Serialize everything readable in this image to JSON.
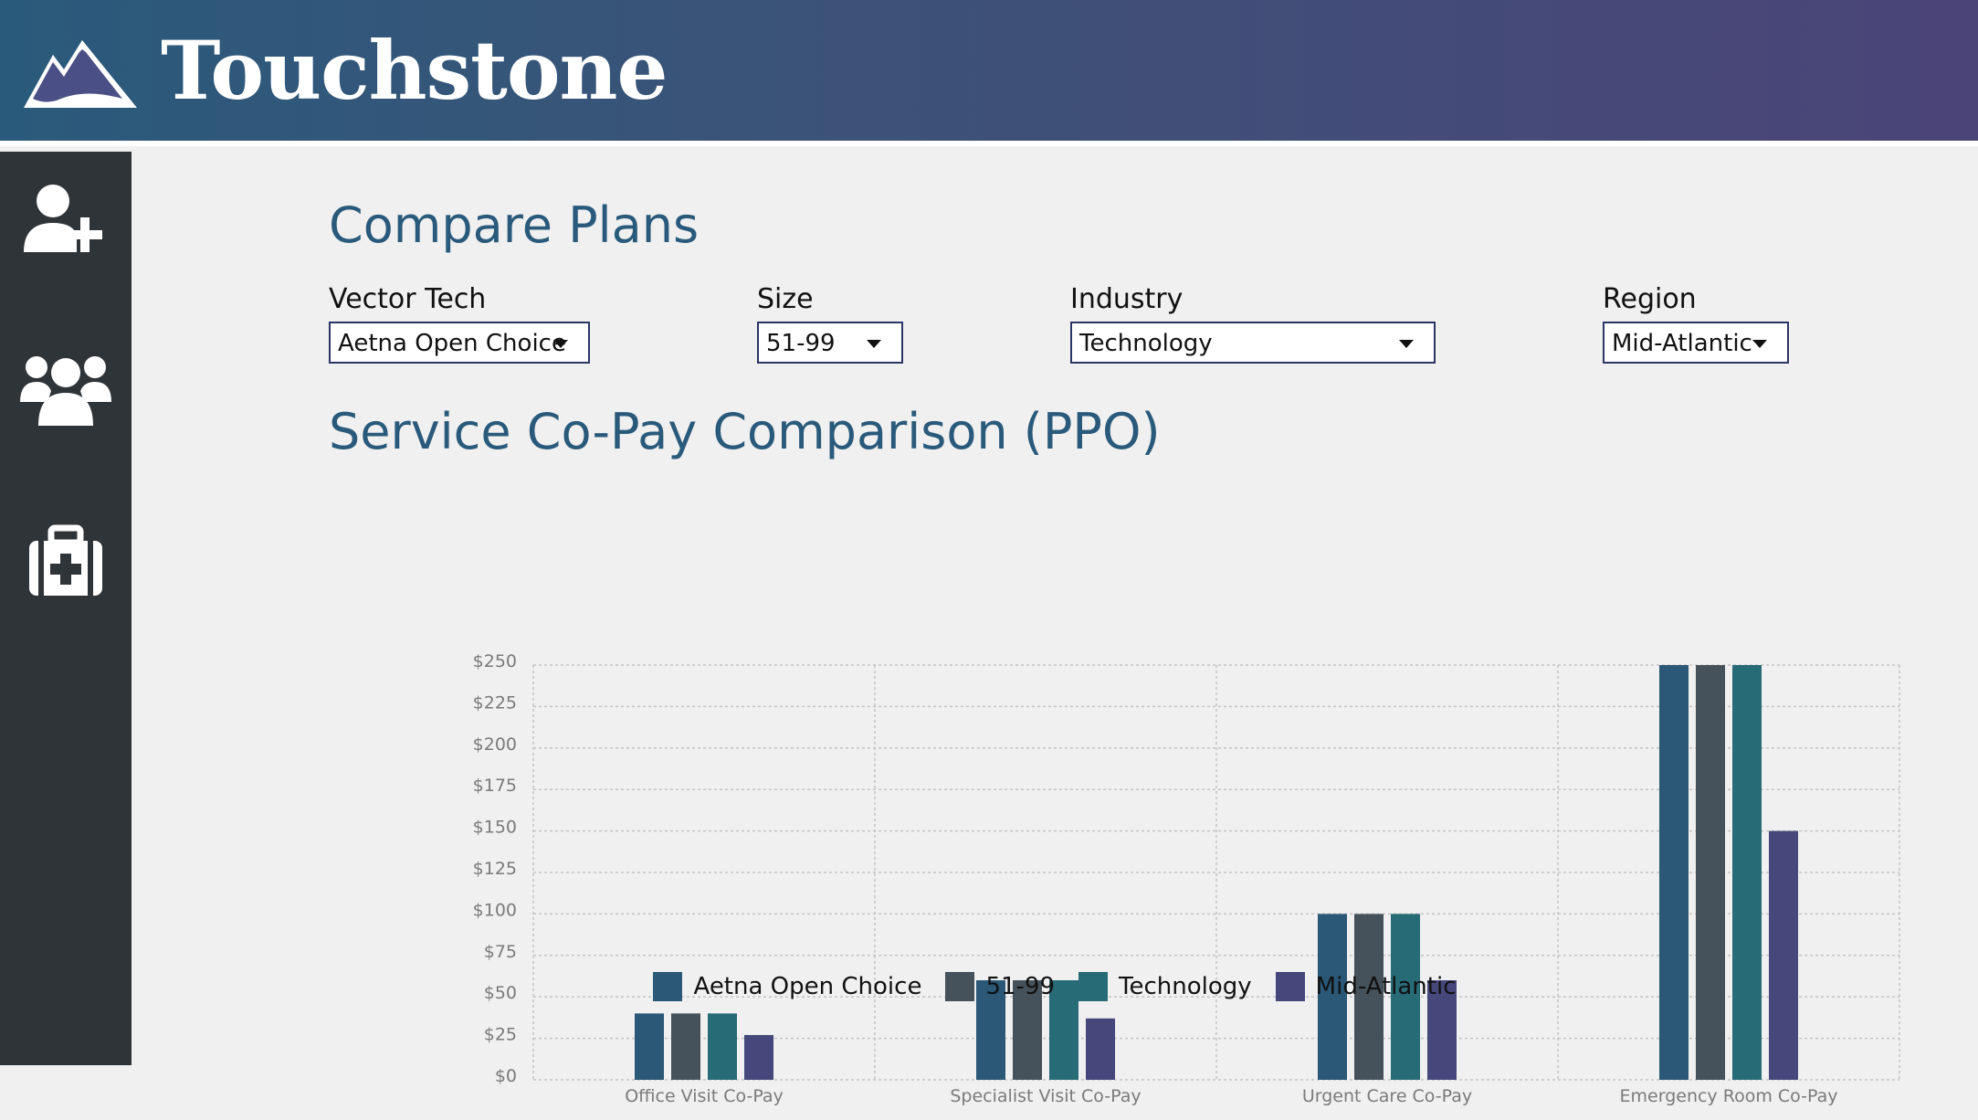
{
  "header": {
    "brand": "Touchstone",
    "logo_icon": "mountain-icon"
  },
  "sidebar": {
    "items": [
      {
        "icon": "add-user-icon"
      },
      {
        "icon": "users-icon"
      },
      {
        "icon": "medical-kit-icon"
      }
    ]
  },
  "page": {
    "title": "Compare Plans"
  },
  "filters": {
    "plan": {
      "label": "Vector Tech",
      "value": "Aetna Open Choice"
    },
    "size": {
      "label": "Size",
      "value": "51-99"
    },
    "industry": {
      "label": "Industry",
      "value": "Technology"
    },
    "region": {
      "label": "Region",
      "value": "Mid-Atlantic"
    }
  },
  "chart_data": {
    "type": "bar",
    "title": "Service Co-Pay Comparison (PPO)",
    "xlabel": "",
    "ylabel": "",
    "ylim": [
      0,
      250
    ],
    "yticks": [
      "$0",
      "$25",
      "$50",
      "$75",
      "$100",
      "$125",
      "$150",
      "$175",
      "$200",
      "$225",
      "$250"
    ],
    "grid": true,
    "legend_position": "bottom-center",
    "categories": [
      "Office Visit Co-Pay",
      "Specialist Visit Co-Pay",
      "Urgent Care Co-Pay",
      "Emergency Room Co-Pay"
    ],
    "series": [
      {
        "name": "Aetna Open Choice",
        "color": "#2a5876",
        "values": [
          40,
          60,
          100,
          250
        ]
      },
      {
        "name": "51-99",
        "color": "#46525b",
        "values": [
          40,
          60,
          100,
          250
        ]
      },
      {
        "name": "Technology",
        "color": "#276b77",
        "values": [
          40,
          60,
          100,
          250
        ]
      },
      {
        "name": "Mid-Atlantic",
        "color": "#46487c",
        "values": [
          27,
          37,
          60,
          150
        ]
      }
    ]
  }
}
